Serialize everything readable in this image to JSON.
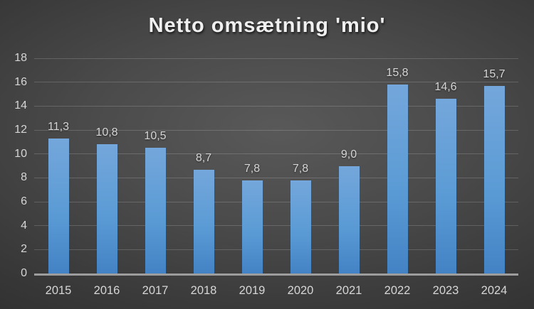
{
  "chart_data": {
    "type": "bar",
    "title": "Netto omsætning 'mio'",
    "categories": [
      "2015",
      "2016",
      "2017",
      "2018",
      "2019",
      "2020",
      "2021",
      "2022",
      "2023",
      "2024"
    ],
    "values": [
      11.3,
      10.8,
      10.5,
      8.7,
      7.8,
      7.8,
      9.0,
      15.8,
      14.6,
      15.7
    ],
    "value_labels": [
      "11,3",
      "10,8",
      "10,5",
      "8,7",
      "7,8",
      "7,8",
      "9,0",
      "15,8",
      "14,6",
      "15,7"
    ],
    "xlabel": "",
    "ylabel": "",
    "ylim": [
      0,
      18
    ],
    "ytick_step": 2,
    "grid": true,
    "legend": "none",
    "colors": {
      "bar_top": "#74a7db",
      "bar_mid": "#5b9bd5",
      "bar_bottom": "#4383c5",
      "background_center": "#595959",
      "background_edge": "#242424",
      "gridline": "rgba(255,255,255,0.17)",
      "axis_line": "#9d9d9d",
      "tick_label": "#d6d6d6",
      "title": "#f0f0f0"
    }
  }
}
